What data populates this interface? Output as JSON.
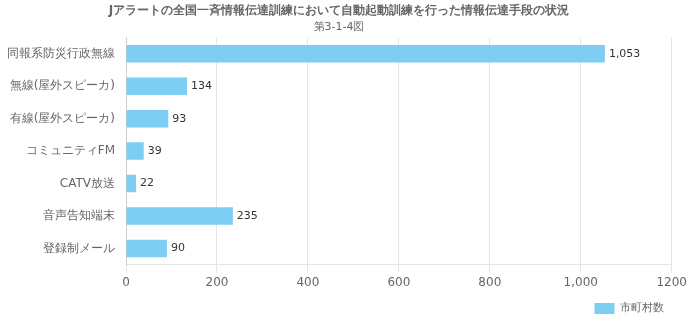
{
  "chart_data": {
    "type": "bar",
    "orientation": "horizontal",
    "title": "Jアラートの全国一斉情報伝達訓練において自動起動訓練を行った情報伝達手段の状況",
    "subtitle": "第3-1-4図",
    "categories": [
      "同報系防災行政無線",
      "無線(屋外スピーカ)",
      "有線(屋外スピーカ)",
      "コミュニティFM",
      "CATV放送",
      "音声告知端末",
      "登録制メール"
    ],
    "series": [
      {
        "name": "市町村数",
        "color": "#7ecef4",
        "values": [
          1053,
          134,
          93,
          39,
          22,
          235,
          90
        ],
        "value_labels": [
          "1,053",
          "134",
          "93",
          "39",
          "22",
          "235",
          "90"
        ]
      }
    ],
    "xlim": [
      0,
      1200
    ],
    "xticks": [
      0,
      200,
      400,
      600,
      800,
      {
        "value": 1000,
        "label": "1,000"
      },
      1200
    ],
    "grid": true,
    "legend": "lower right",
    "data_labels": true
  }
}
